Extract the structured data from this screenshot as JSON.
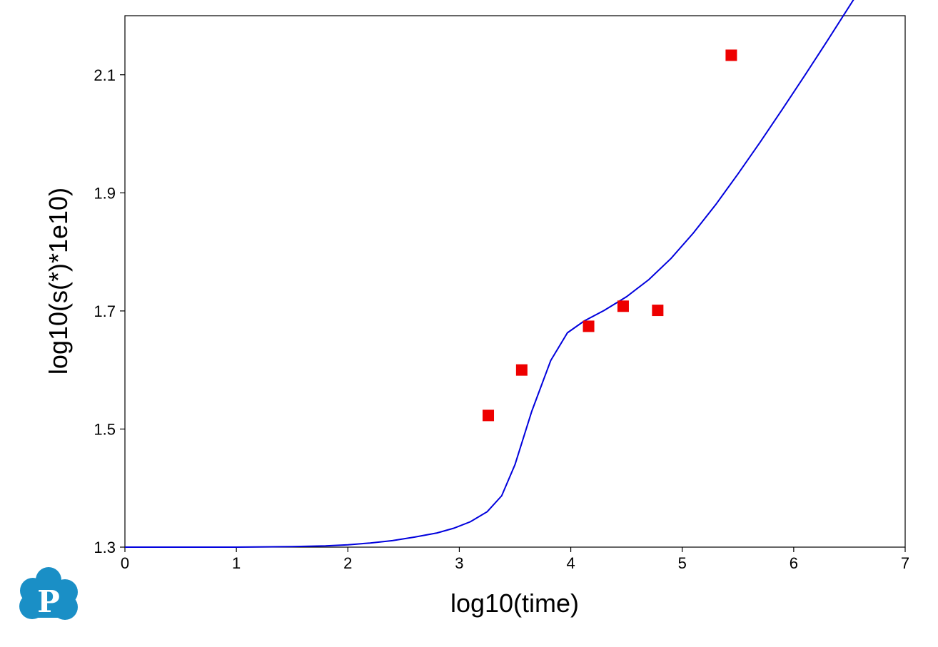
{
  "chart_data": {
    "type": "line",
    "xlabel": "log10(time)",
    "ylabel": "log10(s(*)*1e10)",
    "xlim": [
      0,
      7
    ],
    "ylim": [
      1.3,
      2.2
    ],
    "x_ticks": [
      0,
      1,
      2,
      3,
      4,
      5,
      6,
      7
    ],
    "y_ticks": [
      1.3,
      1.5,
      1.7,
      1.9,
      2.1
    ],
    "y_tick_labels": [
      "1.3",
      "1.5",
      "1.7",
      "1.9",
      "2.1"
    ],
    "grid": false,
    "series": [
      {
        "kind": "line",
        "color": "#0000dd",
        "x": [
          0,
          0.5,
          1.0,
          1.5,
          1.8,
          2.0,
          2.2,
          2.4,
          2.6,
          2.8,
          2.95,
          3.1,
          3.25,
          3.38,
          3.5,
          3.65,
          3.82,
          3.97,
          4.12,
          4.3,
          4.5,
          4.7,
          4.9,
          5.1,
          5.3,
          5.5,
          5.7,
          5.9,
          6.1,
          6.3,
          6.57
        ],
        "y": [
          1.3,
          1.3,
          1.3,
          1.301,
          1.302,
          1.304,
          1.307,
          1.311,
          1.317,
          1.324,
          1.332,
          1.343,
          1.36,
          1.387,
          1.44,
          1.53,
          1.616,
          1.663,
          1.683,
          1.701,
          1.724,
          1.753,
          1.789,
          1.832,
          1.88,
          1.932,
          1.986,
          2.042,
          2.099,
          2.157,
          2.237
        ]
      },
      {
        "kind": "scatter",
        "marker": "square",
        "color": "#ee0000",
        "x": [
          3.26,
          3.56,
          4.16,
          4.47,
          4.78,
          5.44
        ],
        "y": [
          1.523,
          1.6,
          1.674,
          1.708,
          1.701,
          2.133
        ]
      }
    ]
  },
  "logo": {
    "name": "p-cloud-logo",
    "letter": "P",
    "color": "#1a8fc6"
  }
}
